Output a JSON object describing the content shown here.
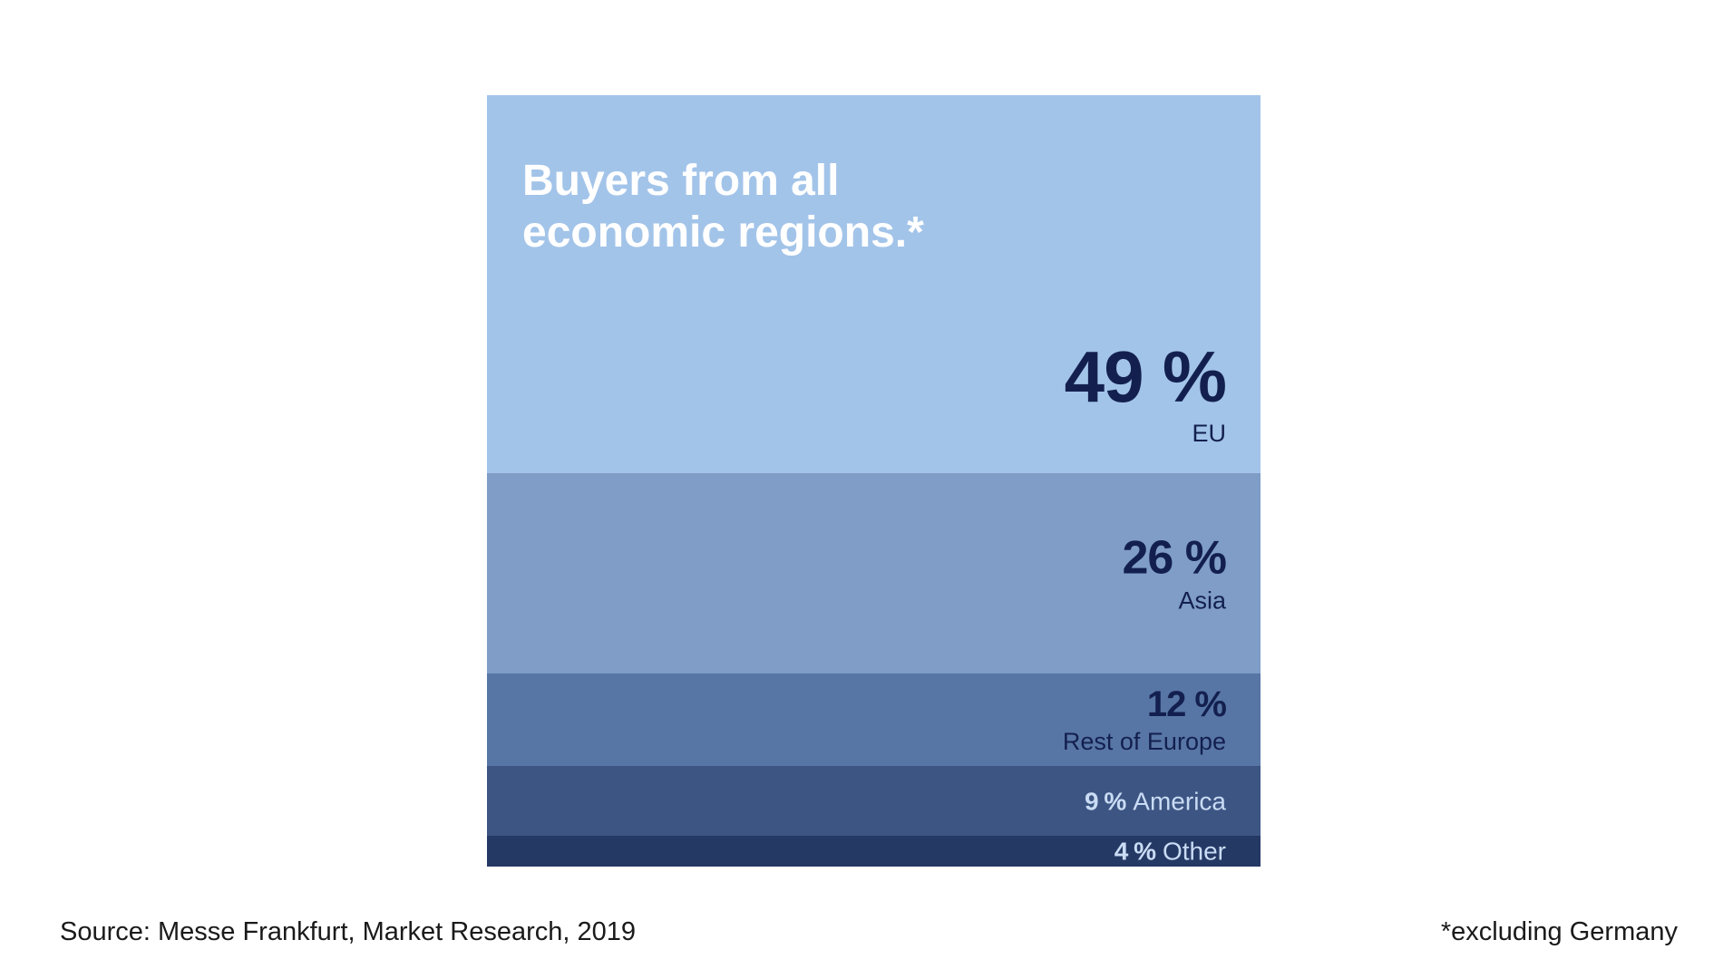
{
  "chart_data": {
    "type": "stacked-bar",
    "title": "Buyers from all\neconomic regions.*",
    "unit": "%",
    "segments": [
      {
        "label": "EU",
        "value": 49,
        "display": "49 %",
        "color": "#a3c4e9",
        "text_color": "#13204f",
        "layout": "stacked-large"
      },
      {
        "label": "Asia",
        "value": 26,
        "display": "26 %",
        "color": "#7f9dc6",
        "text_color": "#13204f",
        "layout": "stacked-medium"
      },
      {
        "label": "Rest of Europe",
        "value": 12,
        "display": "12 %",
        "color": "#5876a5",
        "text_color": "#13204f",
        "layout": "stacked-small"
      },
      {
        "label": "America",
        "value": 9,
        "display": "9 %",
        "color": "#3d5583",
        "text_color": "#c9dcf4",
        "layout": "inline"
      },
      {
        "label": "Other",
        "value": 4,
        "display": "4 %",
        "color": "#253965",
        "text_color": "#c9dcf4",
        "layout": "inline"
      }
    ]
  },
  "footer": {
    "source": "Source: Messe Frankfurt, Market Research, 2019",
    "footnote": "*excluding Germany"
  }
}
